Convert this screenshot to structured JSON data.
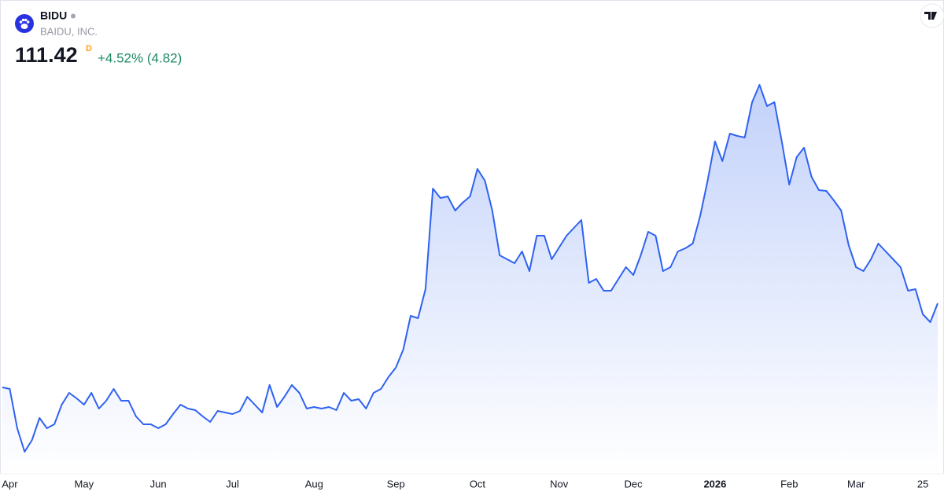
{
  "chart_data": {
    "type": "area",
    "symbol": "BIDU",
    "company": "BAIDU, INC.",
    "price": 111.42,
    "interval": "D",
    "change": "+4.52% (4.82)",
    "color": "#2f62f0",
    "categories": [
      null,
      "Apr",
      null,
      null,
      null,
      null,
      null,
      null,
      null,
      null,
      null,
      "May",
      null,
      null,
      null,
      null,
      null,
      null,
      null,
      null,
      null,
      "Jun",
      null,
      null,
      null,
      null,
      null,
      null,
      null,
      null,
      null,
      "Jul",
      null,
      null,
      null,
      null,
      null,
      null,
      null,
      null,
      null,
      null,
      "Aug",
      null,
      null,
      null,
      null,
      null,
      null,
      null,
      null,
      null,
      null,
      "Sep",
      null,
      null,
      null,
      null,
      null,
      null,
      null,
      null,
      null,
      null,
      "Oct",
      null,
      null,
      null,
      null,
      null,
      null,
      null,
      null,
      null,
      null,
      "Nov",
      null,
      null,
      null,
      null,
      null,
      null,
      null,
      null,
      null,
      "Dec",
      null,
      null,
      null,
      null,
      null,
      null,
      null,
      null,
      null,
      null,
      "2026",
      null,
      null,
      null,
      null,
      null,
      null,
      null,
      null,
      null,
      "Feb",
      null,
      null,
      null,
      null,
      null,
      null,
      null,
      null,
      "Mar",
      null,
      null,
      null,
      null,
      null,
      null,
      null,
      null,
      "25",
      null,
      null
    ],
    "values": [
      92.16,
      91.8,
      82.8,
      77.4,
      80.1,
      85.14,
      82.8,
      83.7,
      88.2,
      90.9,
      89.64,
      88.2,
      90.9,
      87.3,
      89.1,
      91.8,
      89.1,
      89.1,
      85.5,
      83.7,
      83.7,
      82.8,
      83.7,
      86.04,
      88.2,
      87.3,
      86.94,
      85.5,
      84.24,
      86.76,
      86.4,
      86.04,
      86.76,
      90.0,
      88.2,
      86.4,
      92.7,
      87.66,
      90.0,
      92.7,
      90.9,
      87.3,
      87.66,
      87.3,
      87.66,
      86.94,
      90.9,
      89.1,
      89.46,
      87.3,
      90.9,
      91.8,
      94.5,
      96.66,
      100.8,
      108.54,
      108.0,
      114.66,
      137.7,
      135.54,
      135.9,
      132.66,
      134.46,
      135.9,
      142.2,
      139.5,
      132.66,
      122.4,
      121.5,
      120.6,
      123.3,
      118.8,
      126.9,
      126.9,
      121.5,
      124.2,
      126.9,
      128.7,
      130.5,
      116.1,
      117.0,
      114.3,
      114.3,
      117.0,
      119.7,
      117.9,
      122.4,
      127.8,
      126.9,
      118.8,
      119.7,
      123.3,
      124.02,
      125.1,
      131.4,
      139.5,
      148.5,
      144.0,
      150.3,
      149.76,
      149.4,
      157.5,
      161.46,
      156.6,
      157.5,
      148.5,
      138.6,
      144.9,
      147.06,
      140.4,
      137.34,
      137.16,
      135.0,
      132.66,
      124.74,
      119.7,
      118.8,
      121.5,
      125.1,
      123.3,
      121.5,
      119.7,
      114.3,
      114.66,
      108.9,
      107.1,
      111.42
    ]
  }
}
